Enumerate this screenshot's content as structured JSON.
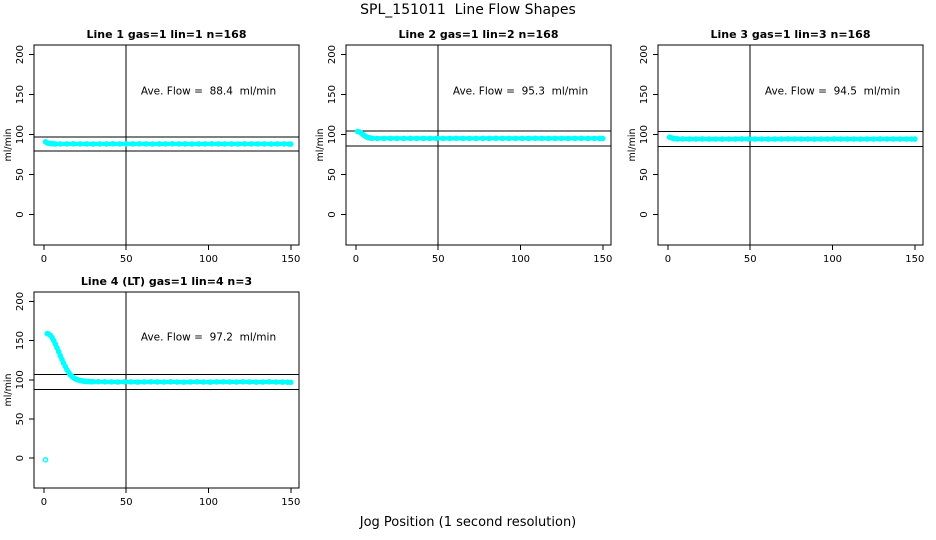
{
  "figure": {
    "title": "SPL_151011  Line Flow Shapes",
    "xlabel": "Jog Position (1 second resolution)"
  },
  "colors": {
    "points": "#00FFFF",
    "lines": "#000000",
    "background": "#FFFFFF"
  },
  "chart_data": [
    {
      "type": "scatter",
      "title": "Line 1 gas=1 lin=1 n=168",
      "ylabel": "ml/min",
      "xlabel": "",
      "annotation": "Ave. Flow =  88.4  ml/min",
      "annotation_xy": [
        100,
        150
      ],
      "ave_flow": 88.4,
      "n": 168,
      "ref_lines_h": [
        97.2,
        79.6
      ],
      "ref_line_v": 50,
      "xlim": [
        -6,
        155
      ],
      "ylim": [
        -38,
        212
      ],
      "xticks": [
        0,
        50,
        100,
        150
      ],
      "yticks": [
        0,
        50,
        100,
        150,
        200
      ],
      "row": 0,
      "col": 0,
      "points": [
        [
          1,
          91
        ],
        [
          2,
          89.6
        ],
        [
          3,
          89.1
        ],
        [
          4,
          88.8
        ],
        [
          5,
          88.6
        ],
        [
          6,
          88.5
        ],
        [
          7,
          88.4
        ],
        [
          10,
          88.4
        ],
        [
          14,
          88.4
        ],
        [
          18,
          88.5
        ],
        [
          22,
          88.4
        ],
        [
          26,
          88.4
        ],
        [
          30,
          88.3
        ],
        [
          34,
          88.4
        ],
        [
          38,
          88.4
        ],
        [
          42,
          88.5
        ],
        [
          46,
          88.4
        ],
        [
          50,
          88.4
        ],
        [
          54,
          88.4
        ],
        [
          58,
          88.5
        ],
        [
          62,
          88.4
        ],
        [
          66,
          88.3
        ],
        [
          70,
          88.4
        ],
        [
          74,
          88.4
        ],
        [
          78,
          88.5
        ],
        [
          82,
          88.4
        ],
        [
          86,
          88.4
        ],
        [
          90,
          88.3
        ],
        [
          94,
          88.4
        ],
        [
          98,
          88.4
        ],
        [
          102,
          88.5
        ],
        [
          106,
          88.4
        ],
        [
          110,
          88.4
        ],
        [
          114,
          88.4
        ],
        [
          118,
          88.3
        ],
        [
          122,
          88.5
        ],
        [
          126,
          88.4
        ],
        [
          130,
          88.4
        ],
        [
          134,
          88.4
        ],
        [
          138,
          88.3
        ],
        [
          142,
          88.4
        ],
        [
          146,
          88.4
        ],
        [
          149,
          88.3
        ],
        [
          150,
          88.1
        ]
      ],
      "isolated_points": []
    },
    {
      "type": "scatter",
      "title": "Line 2 gas=1 lin=2 n=168",
      "ylabel": "ml/min",
      "xlabel": "",
      "annotation": "Ave. Flow =  95.3  ml/min",
      "annotation_xy": [
        100,
        150
      ],
      "ave_flow": 95.3,
      "n": 168,
      "ref_lines_h": [
        104.8,
        85.8
      ],
      "ref_line_v": 50,
      "xlim": [
        -6,
        155
      ],
      "ylim": [
        -38,
        212
      ],
      "xticks": [
        0,
        50,
        100,
        150
      ],
      "yticks": [
        0,
        50,
        100,
        150,
        200
      ],
      "row": 0,
      "col": 1,
      "points": [
        [
          1,
          104
        ],
        [
          2,
          103.4
        ],
        [
          3,
          102.2
        ],
        [
          4,
          100.6
        ],
        [
          5,
          99
        ],
        [
          6,
          97.6
        ],
        [
          7,
          96.6
        ],
        [
          8,
          96
        ],
        [
          9,
          95.6
        ],
        [
          10,
          95.4
        ],
        [
          13,
          95.3
        ],
        [
          17,
          95.3
        ],
        [
          21,
          95.2
        ],
        [
          25,
          95.3
        ],
        [
          29,
          95.3
        ],
        [
          33,
          95.4
        ],
        [
          37,
          95.3
        ],
        [
          41,
          95.3
        ],
        [
          45,
          95.2
        ],
        [
          49,
          95.3
        ],
        [
          53,
          95.3
        ],
        [
          57,
          95.3
        ],
        [
          61,
          95.4
        ],
        [
          65,
          95.3
        ],
        [
          69,
          95.2
        ],
        [
          73,
          95.3
        ],
        [
          77,
          95.3
        ],
        [
          81,
          95.3
        ],
        [
          85,
          95.4
        ],
        [
          89,
          95.3
        ],
        [
          93,
          95.3
        ],
        [
          97,
          95.2
        ],
        [
          101,
          95.3
        ],
        [
          105,
          95.3
        ],
        [
          109,
          95.4
        ],
        [
          113,
          95.3
        ],
        [
          117,
          95.3
        ],
        [
          121,
          95.2
        ],
        [
          125,
          95.3
        ],
        [
          129,
          95.3
        ],
        [
          133,
          95.3
        ],
        [
          137,
          95.4
        ],
        [
          141,
          95.3
        ],
        [
          145,
          95.3
        ],
        [
          148,
          95.2
        ],
        [
          150,
          95.1
        ]
      ],
      "isolated_points": []
    },
    {
      "type": "scatter",
      "title": "Line 3 gas=1 lin=3 n=168",
      "ylabel": "ml/min",
      "xlabel": "",
      "annotation": "Ave. Flow =  94.5  ml/min",
      "annotation_xy": [
        100,
        150
      ],
      "ave_flow": 94.5,
      "n": 168,
      "ref_lines_h": [
        104.0,
        85.1
      ],
      "ref_line_v": 50,
      "xlim": [
        -6,
        155
      ],
      "ylim": [
        -38,
        212
      ],
      "xticks": [
        0,
        50,
        100,
        150
      ],
      "yticks": [
        0,
        50,
        100,
        150,
        200
      ],
      "row": 0,
      "col": 2,
      "points": [
        [
          1,
          96.8
        ],
        [
          2,
          96.1
        ],
        [
          3,
          95.4
        ],
        [
          4,
          95
        ],
        [
          5,
          94.8
        ],
        [
          6,
          94.6
        ],
        [
          9,
          94.6
        ],
        [
          13,
          94.5
        ],
        [
          17,
          94.5
        ],
        [
          21,
          94.6
        ],
        [
          25,
          94.5
        ],
        [
          29,
          94.5
        ],
        [
          33,
          94.4
        ],
        [
          37,
          94.5
        ],
        [
          41,
          94.5
        ],
        [
          45,
          94.6
        ],
        [
          49,
          94.5
        ],
        [
          53,
          94.5
        ],
        [
          57,
          94.5
        ],
        [
          61,
          94.4
        ],
        [
          65,
          94.5
        ],
        [
          69,
          94.5
        ],
        [
          73,
          94.6
        ],
        [
          77,
          94.5
        ],
        [
          81,
          94.5
        ],
        [
          85,
          94.5
        ],
        [
          89,
          94.4
        ],
        [
          93,
          94.5
        ],
        [
          97,
          94.5
        ],
        [
          101,
          94.6
        ],
        [
          105,
          94.5
        ],
        [
          109,
          94.5
        ],
        [
          113,
          94.5
        ],
        [
          117,
          94.4
        ],
        [
          121,
          94.5
        ],
        [
          125,
          94.5
        ],
        [
          129,
          94.6
        ],
        [
          133,
          94.5
        ],
        [
          137,
          94.5
        ],
        [
          141,
          94.5
        ],
        [
          145,
          94.5
        ],
        [
          148,
          94.5
        ],
        [
          150,
          94.4
        ]
      ],
      "isolated_points": []
    },
    {
      "type": "scatter",
      "title": "Line 4 (LT) gas=1 lin=4 n=3",
      "ylabel": "ml/min",
      "xlabel": "",
      "annotation": "Ave. Flow =  97.2  ml/min",
      "annotation_xy": [
        100,
        150
      ],
      "ave_flow": 97.2,
      "n": 3,
      "ref_lines_h": [
        106.9,
        87.5
      ],
      "ref_line_v": 50,
      "xlim": [
        -6,
        155
      ],
      "ylim": [
        -38,
        212
      ],
      "xticks": [
        0,
        50,
        100,
        150
      ],
      "yticks": [
        0,
        50,
        100,
        150,
        200
      ],
      "row": 1,
      "col": 0,
      "points": [
        [
          2,
          159
        ],
        [
          3,
          158.3
        ],
        [
          4,
          156.6
        ],
        [
          5,
          153.8
        ],
        [
          6,
          150
        ],
        [
          7,
          145.6
        ],
        [
          8,
          140.8
        ],
        [
          9,
          135.8
        ],
        [
          10,
          130.8
        ],
        [
          11,
          125.9
        ],
        [
          12,
          121.2
        ],
        [
          13,
          116.9
        ],
        [
          14,
          113
        ],
        [
          15,
          109.6
        ],
        [
          16,
          106.7
        ],
        [
          17,
          104.4
        ],
        [
          18,
          102.7
        ],
        [
          19,
          101.4
        ],
        [
          20,
          100.4
        ],
        [
          21,
          99.7
        ],
        [
          22,
          99.1
        ],
        [
          23,
          98.7
        ],
        [
          24,
          98.4
        ],
        [
          25,
          98.1
        ],
        [
          26,
          97.9
        ],
        [
          27,
          97.8
        ],
        [
          28,
          97.7
        ],
        [
          29,
          97.6
        ],
        [
          30,
          97.6
        ],
        [
          33,
          97.6
        ],
        [
          37,
          97.5
        ],
        [
          41,
          97.3
        ],
        [
          45,
          97.2
        ],
        [
          49,
          97.4
        ],
        [
          53,
          97.3
        ],
        [
          57,
          97.1
        ],
        [
          61,
          97.3
        ],
        [
          65,
          97.5
        ],
        [
          69,
          97.3
        ],
        [
          73,
          97.2
        ],
        [
          77,
          97.4
        ],
        [
          81,
          97.2
        ],
        [
          85,
          97.1
        ],
        [
          89,
          97.3
        ],
        [
          93,
          97.4
        ],
        [
          97,
          97.2
        ],
        [
          101,
          97.1
        ],
        [
          105,
          97.3
        ],
        [
          109,
          97.5
        ],
        [
          113,
          97.3
        ],
        [
          117,
          97.2
        ],
        [
          121,
          97.4
        ],
        [
          125,
          97.3
        ],
        [
          129,
          97.1
        ],
        [
          133,
          97.2
        ],
        [
          137,
          97.4
        ],
        [
          141,
          97.2
        ],
        [
          145,
          97.1
        ],
        [
          148,
          97
        ],
        [
          150,
          96.8
        ]
      ],
      "isolated_points": [
        [
          1,
          -2
        ]
      ]
    }
  ]
}
